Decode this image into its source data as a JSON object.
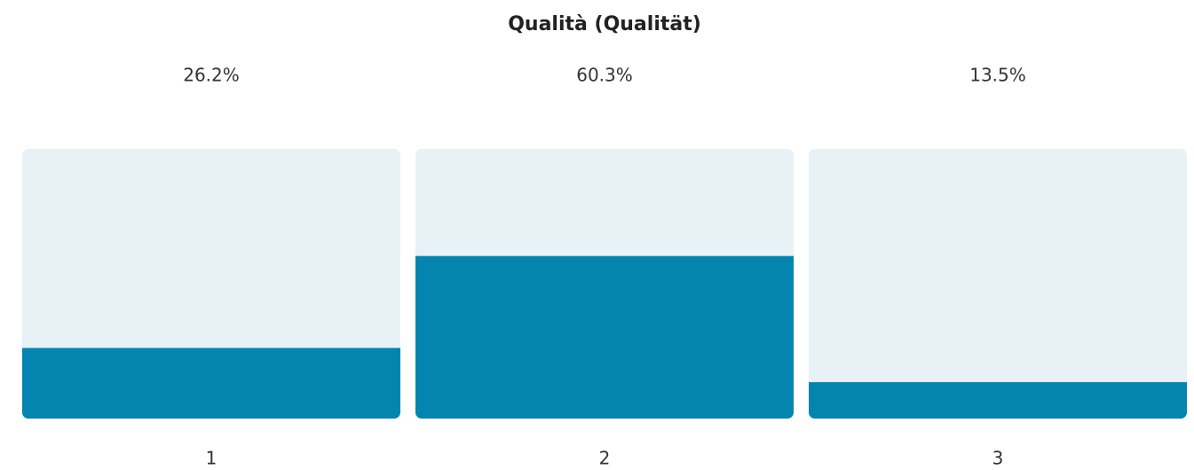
{
  "chart_data": {
    "type": "bar",
    "title": "Qualità (Qualität)",
    "categories": [
      "1",
      "2",
      "3"
    ],
    "values": [
      26.2,
      60.3,
      13.5
    ],
    "value_labels": [
      "26.2%",
      "60.3%",
      "13.5%"
    ],
    "color": "#0385b0",
    "background_color": "#e8f1f5",
    "ylim": [
      0,
      100
    ]
  }
}
